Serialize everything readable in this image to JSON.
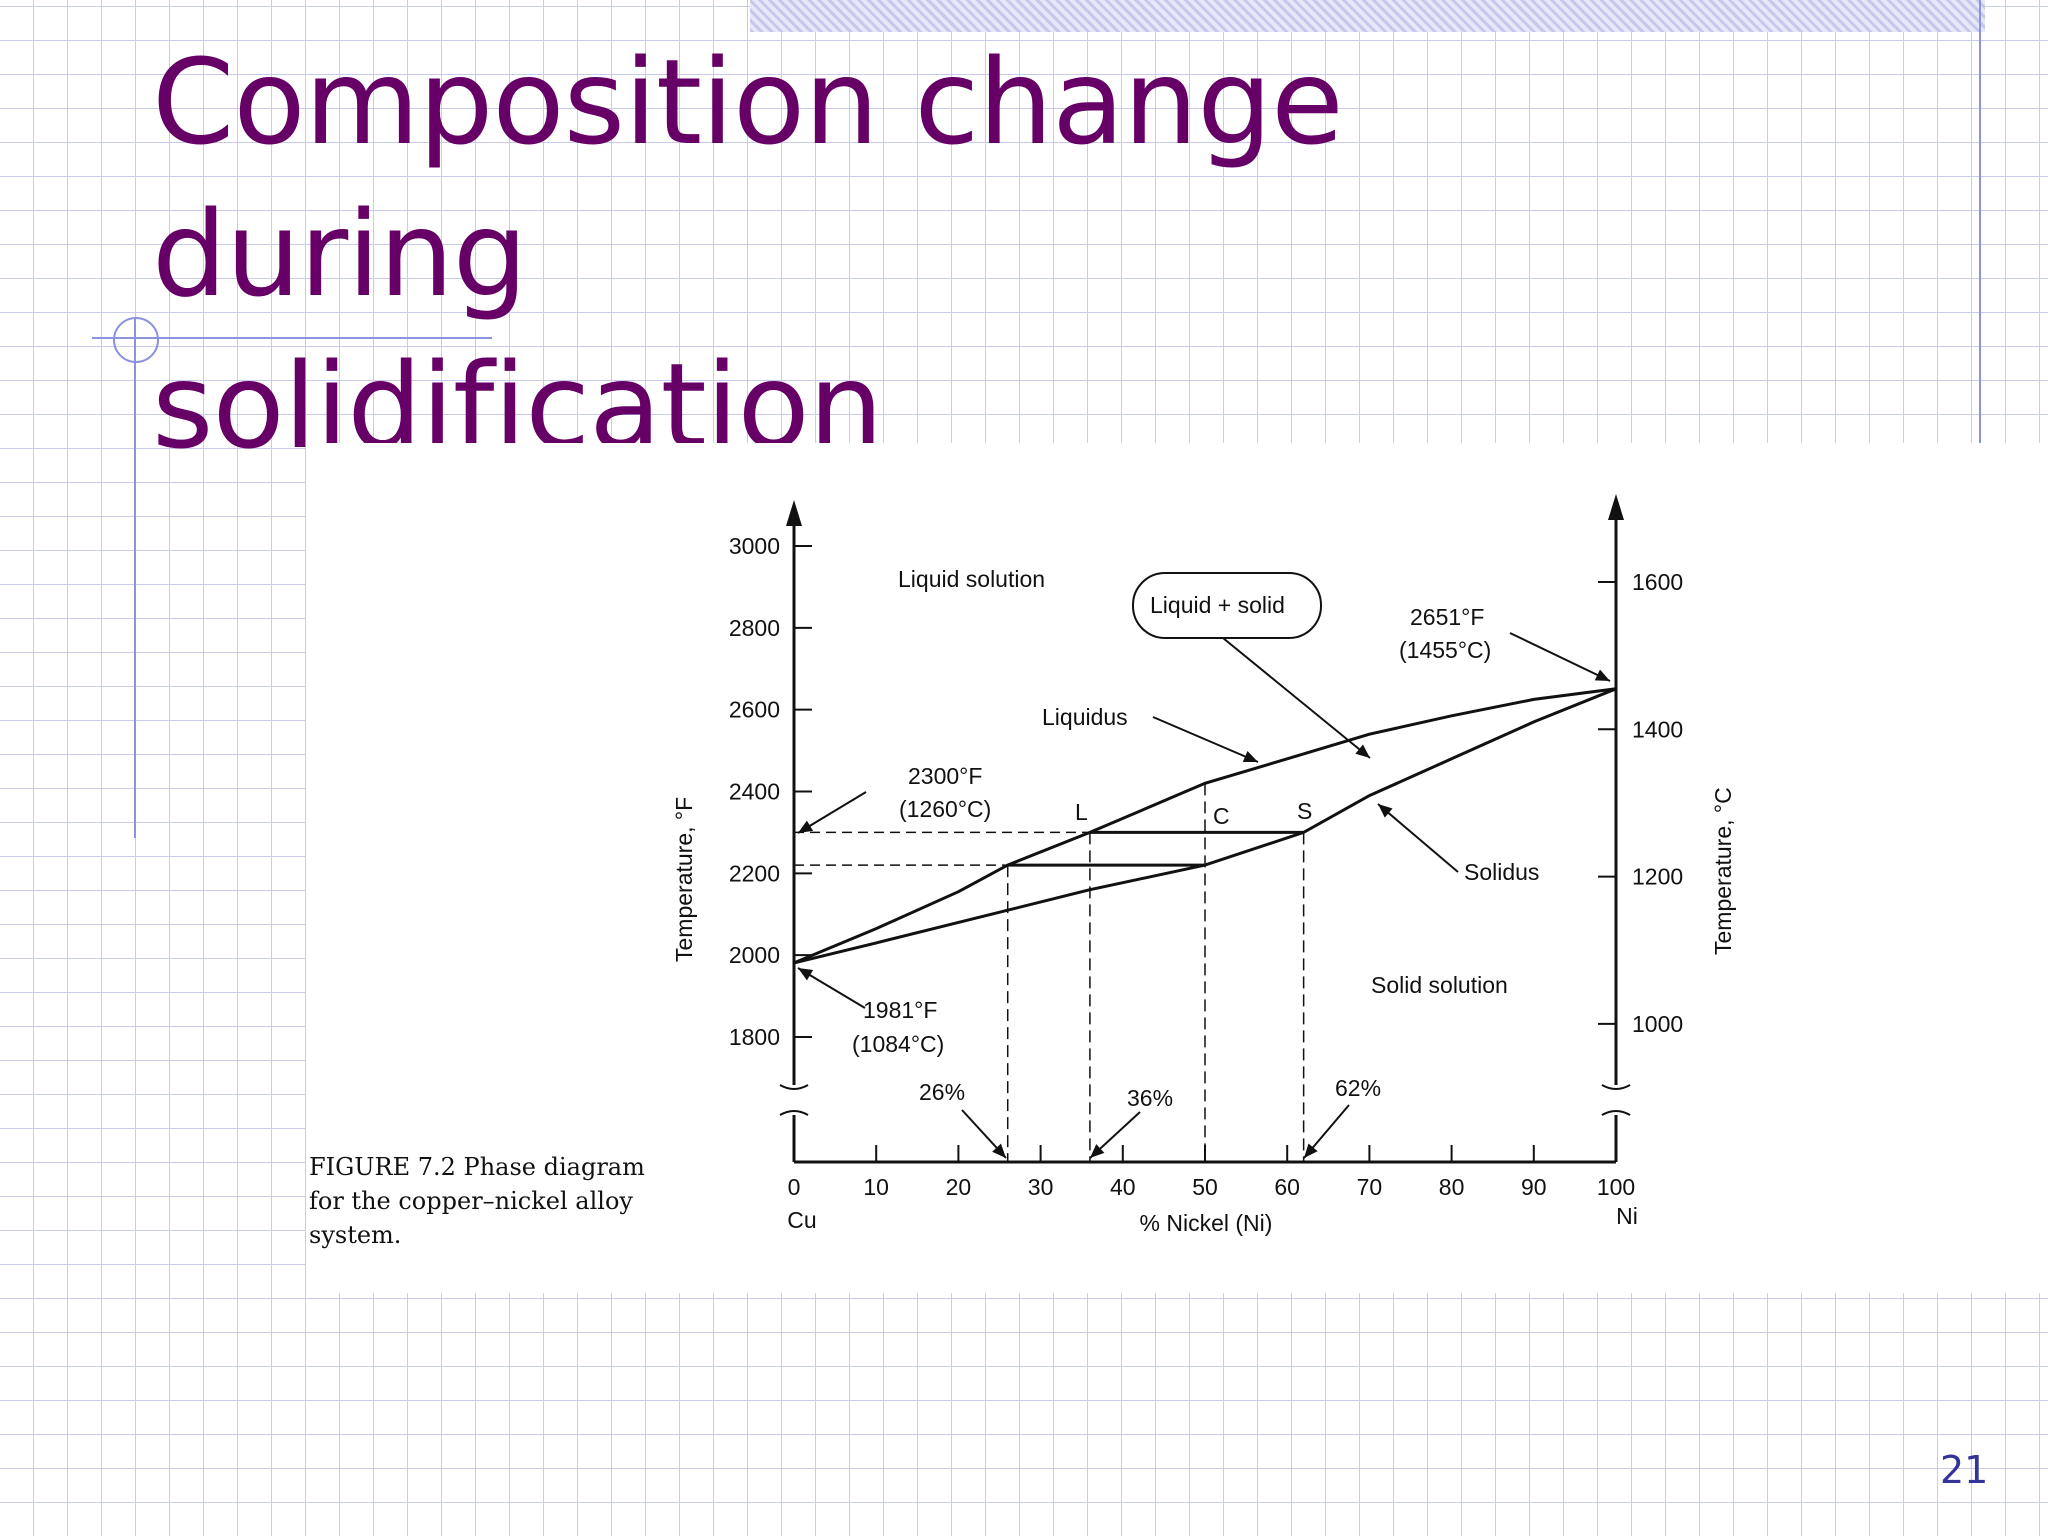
{
  "slide": {
    "title_line1": "Composition change during",
    "title_line2": "solidification",
    "page_number": "21",
    "title_color": "#660066"
  },
  "figure": {
    "caption": "FIGURE 7.2    Phase diagram for the copper–nickel alloy system."
  },
  "chart_data": {
    "type": "line",
    "title": "",
    "xlabel": "% Nickel (Ni)",
    "ylabel": "Temperature, °F",
    "ylabel_right": "Temperature, °C",
    "xlim": [
      0,
      100
    ],
    "ylim": [
      1500,
      3000
    ],
    "ylim_right_C": [
      816,
      1649
    ],
    "x_ticks": [
      "0",
      "10",
      "20",
      "30",
      "40",
      "50",
      "60",
      "70",
      "80",
      "90",
      "100"
    ],
    "x_end_labels": {
      "left": "Cu",
      "right": "Ni"
    },
    "y_ticks": [
      "3000",
      "2800",
      "2600",
      "2400",
      "2200",
      "2000",
      "1800"
    ],
    "y_ticks_right": [
      "1600",
      "1400",
      "1200",
      "1000"
    ],
    "series": [
      {
        "name": "Liquidus",
        "x": [
          0,
          10,
          20,
          26,
          36,
          50,
          60,
          70,
          80,
          90,
          100
        ],
        "y": [
          1981,
          2065,
          2155,
          2220,
          2300,
          2420,
          2480,
          2540,
          2585,
          2625,
          2651
        ]
      },
      {
        "name": "Solidus",
        "x": [
          0,
          10,
          20,
          26,
          36,
          50,
          62,
          70,
          80,
          90,
          100
        ],
        "y": [
          1981,
          2030,
          2080,
          2110,
          2160,
          2220,
          2300,
          2390,
          2480,
          2570,
          2651
        ]
      }
    ],
    "tie_lines": [
      {
        "x1": 36,
        "x2": 62,
        "T": 2300
      },
      {
        "x1": 26,
        "x2": 50,
        "T": 2220
      }
    ],
    "region_labels": [
      "Liquid solution",
      "Liquid + solid",
      "Solid solution"
    ],
    "point_labels": [
      "L",
      "C",
      "S"
    ],
    "annotations": {
      "liquidus": "Liquidus",
      "solidus": "Solidus",
      "ni_melt_F": "2651°F",
      "ni_melt_C": "(1455°C)",
      "t2300_F": "2300°F",
      "t2300_C": "(1260°C)",
      "cu_melt_F": "1981°F",
      "cu_melt_C": "(1084°C)",
      "pct26": "26%",
      "pct36": "36%",
      "pct62": "62%"
    },
    "grid": false
  },
  "icons": {
    "axis_break": "axis-break-icon",
    "axis_arrow": "arrow-up-icon"
  }
}
